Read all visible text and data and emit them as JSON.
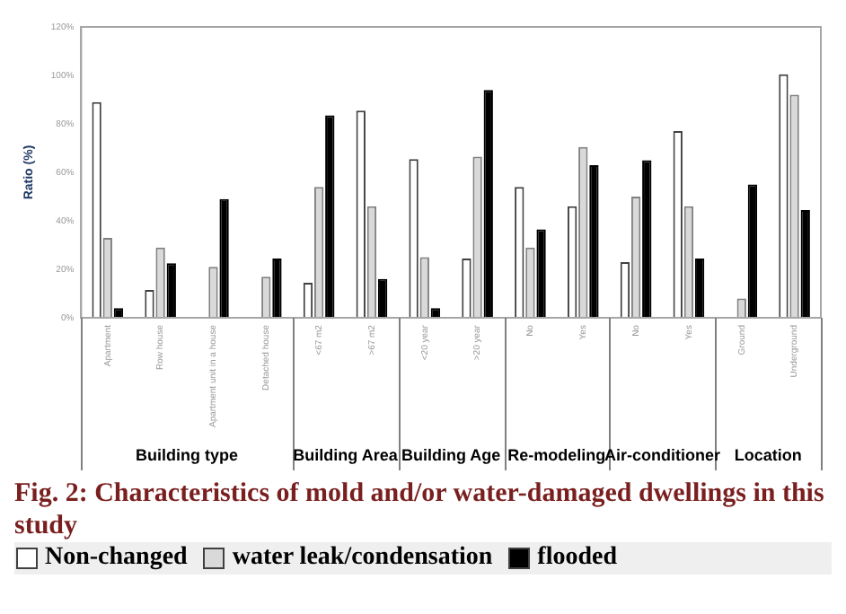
{
  "chart_data": {
    "type": "bar",
    "title": "Fig. 2: Characteristics of mold and/or water-damaged dwellings in this study",
    "ylabel": "Ratio (%)",
    "categories": [
      "Apartment",
      "Row house",
      "Apartment unit in a house",
      "Detached house",
      "<67 m2",
      ">67 m2",
      "<20 year",
      ">20 year",
      "No",
      "Yes",
      "No",
      "Yes",
      "Ground",
      "Underground"
    ],
    "series": [
      {
        "name": "Non-changed",
        "color": "#ffffff",
        "values": [
          89,
          11.5,
          0,
          0,
          14.5,
          85.5,
          65.5,
          24.5,
          54,
          46,
          23,
          77,
          0,
          100.5
        ]
      },
      {
        "name": "water leak/condensation",
        "color": "#d9d9d9",
        "values": [
          33,
          29,
          21,
          17,
          54,
          46,
          25,
          66.5,
          29,
          70.5,
          50,
          46,
          8,
          92
        ]
      },
      {
        "name": "flooded",
        "color": "#000000",
        "values": [
          4,
          22.5,
          49,
          24.5,
          83.5,
          16,
          4,
          94,
          36.5,
          63,
          65,
          24.5,
          55,
          44.5
        ]
      }
    ],
    "ylim": [
      0,
      120
    ],
    "yticks": [
      {
        "value": 0,
        "label": "0%"
      },
      {
        "value": 20,
        "label": "20%"
      },
      {
        "value": 40,
        "label": "40%"
      },
      {
        "value": 60,
        "label": "60%"
      },
      {
        "value": 80,
        "label": "80%"
      },
      {
        "value": 100,
        "label": "100%"
      },
      {
        "value": 120,
        "label": "120%"
      }
    ],
    "grid": false,
    "legend": "bottom",
    "annotations": [
      "Building type",
      "Building Area",
      "Building Age",
      "Re-modeling",
      "Air-conditioner",
      "Location"
    ]
  }
}
